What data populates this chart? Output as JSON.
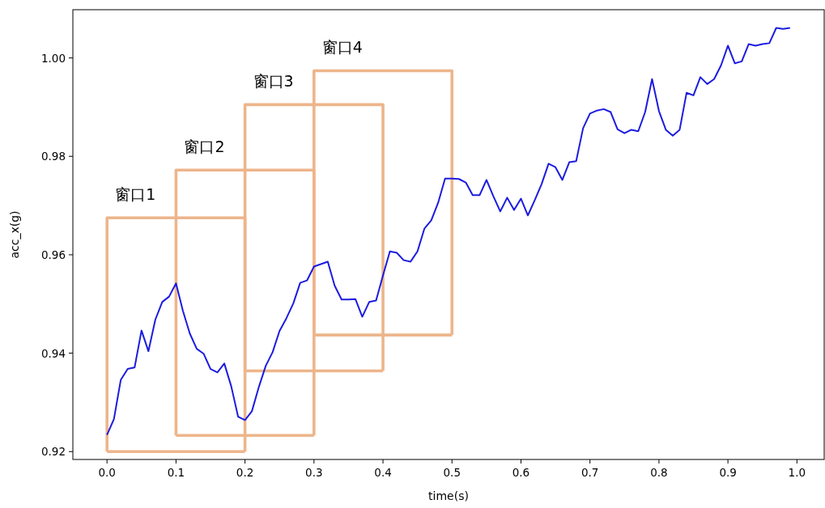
{
  "chart_data": {
    "type": "line",
    "xlabel": "time(s)",
    "ylabel": "acc_x(g)",
    "xlim": [
      -0.0495,
      1.0395
    ],
    "ylim": [
      0.9184,
      1.0098
    ],
    "xticks": [
      {
        "value": 0,
        "label": "0.0"
      },
      0.1,
      0.2,
      0.3,
      0.4,
      0.5,
      0.6,
      0.7,
      0.8,
      0.9,
      {
        "value": 1,
        "label": "1.0"
      }
    ],
    "yticks": [
      0.92,
      0.94,
      0.96,
      0.98,
      {
        "value": 1,
        "label": "1.00"
      }
    ],
    "series": [
      {
        "color": "#edb58b",
        "x": [
          0,
          0,
          0.2,
          0.2
        ],
        "values": [
          0.92,
          0.9675,
          0.9675,
          0.92
        ]
      },
      {
        "color": "#edb58b",
        "x": [
          0.1,
          0.1,
          0.3,
          0.3
        ],
        "values": [
          0.9233,
          0.9772,
          0.9772,
          0.9233
        ]
      },
      {
        "color": "#edb58b",
        "x": [
          0.2,
          0.2,
          0.4,
          0.4
        ],
        "values": [
          0.9364,
          0.9905,
          0.9905,
          0.9364
        ]
      },
      {
        "color": "#edb58b",
        "x": [
          0.3,
          0.3,
          0.5,
          0.5
        ],
        "values": [
          0.9437,
          0.9974,
          0.9974,
          0.9437
        ]
      },
      {
        "color": "#edb58b",
        "x": [
          0,
          0.2
        ],
        "values": [
          0.92,
          0.92
        ]
      },
      {
        "color": "#edb58b",
        "x": [
          0.1,
          0.3
        ],
        "values": [
          0.9233,
          0.9233
        ]
      },
      {
        "color": "#edb58b",
        "x": [
          0.2,
          0.4
        ],
        "values": [
          0.9364,
          0.9364
        ]
      },
      {
        "color": "#edb58b",
        "x": [
          0.3,
          0.5
        ],
        "values": [
          0.9437,
          0.9437
        ]
      },
      {
        "color": "#1c1ce0",
        "x": [
          0,
          0.01,
          0.02,
          0.03,
          0.04,
          0.05,
          0.06,
          0.07,
          0.08,
          0.09,
          0.1,
          0.11,
          0.12,
          0.13,
          0.14,
          0.15,
          0.16,
          0.17,
          0.18,
          0.19,
          0.2,
          0.21,
          0.22,
          0.23,
          0.24,
          0.25,
          0.26,
          0.27,
          0.28,
          0.29,
          0.3,
          0.31,
          0.32,
          0.33,
          0.34,
          0.35,
          0.36,
          0.37,
          0.38,
          0.39,
          0.4,
          0.41,
          0.42,
          0.43,
          0.44,
          0.45,
          0.46,
          0.47,
          0.48,
          0.49,
          0.5,
          0.51,
          0.52,
          0.53,
          0.54,
          0.55,
          0.56,
          0.57,
          0.58,
          0.59,
          0.6,
          0.61,
          0.62,
          0.63,
          0.64,
          0.65,
          0.66,
          0.67,
          0.68,
          0.69,
          0.7,
          0.71,
          0.72,
          0.73,
          0.74,
          0.75,
          0.76,
          0.77,
          0.78,
          0.79,
          0.8,
          0.81,
          0.82,
          0.83,
          0.84,
          0.85,
          0.86,
          0.87,
          0.88,
          0.89,
          0.9,
          0.91,
          0.92,
          0.93,
          0.94,
          0.95,
          0.96,
          0.97,
          0.98,
          0.99
        ],
        "values": [
          0.9234,
          0.9266,
          0.9346,
          0.9368,
          0.9371,
          0.9446,
          0.9404,
          0.9468,
          0.9504,
          0.9515,
          0.9542,
          0.9486,
          0.944,
          0.9409,
          0.9399,
          0.9368,
          0.9361,
          0.9379,
          0.9333,
          0.9271,
          0.9264,
          0.9282,
          0.9331,
          0.9374,
          0.9402,
          0.9445,
          0.9471,
          0.9501,
          0.9543,
          0.9548,
          0.9576,
          0.9581,
          0.9586,
          0.9537,
          0.9509,
          0.9509,
          0.951,
          0.9474,
          0.9504,
          0.9507,
          0.9558,
          0.9607,
          0.9604,
          0.9589,
          0.9586,
          0.9607,
          0.9653,
          0.967,
          0.9706,
          0.9755,
          0.9755,
          0.9754,
          0.9747,
          0.9721,
          0.9721,
          0.9752,
          0.9719,
          0.9688,
          0.9716,
          0.9691,
          0.9714,
          0.968,
          0.9711,
          0.9744,
          0.9785,
          0.9778,
          0.9752,
          0.9788,
          0.979,
          0.9857,
          0.9887,
          0.9893,
          0.9896,
          0.989,
          0.9855,
          0.9847,
          0.9854,
          0.9851,
          0.989,
          0.9957,
          0.9892,
          0.9854,
          0.9842,
          0.9854,
          0.9929,
          0.9924,
          0.9961,
          0.9947,
          0.9957,
          0.9985,
          1.0025,
          0.9989,
          0.9993,
          1.0028,
          1.0025,
          1.0028,
          1.003,
          1.0061,
          1.0059,
          1.0061
        ]
      }
    ],
    "annotations": [
      "窗口1",
      "窗口2",
      "窗口3",
      "窗口4"
    ]
  }
}
